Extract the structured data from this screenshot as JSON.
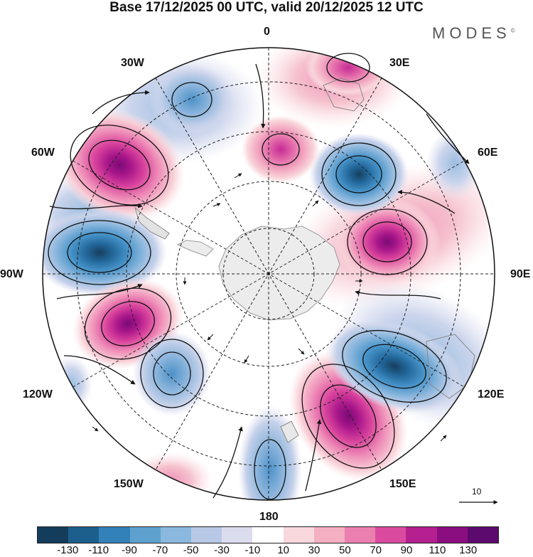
{
  "header": {
    "title": "Base 17/12/2025 00 UTC, valid 20/12/2025 12 UTC",
    "brand": "MODES"
  },
  "map": {
    "projection": "south polar stereographic",
    "longitude_labels": {
      "lon_0": "0",
      "lon_30e": "30E",
      "lon_60e": "60E",
      "lon_90e": "90E",
      "lon_120e": "120E",
      "lon_150e": "150E",
      "lon_180": "180",
      "lon_150w": "150W",
      "lon_120w": "120W",
      "lon_90w": "90W",
      "lon_60w": "60W",
      "lon_30w": "30W"
    },
    "anomaly_centers": [
      {
        "name": "60W high",
        "value": 110
      },
      {
        "name": "85W low",
        "value": -110
      },
      {
        "name": "115W high",
        "value": 110
      },
      {
        "name": "150W low",
        "value": -50
      },
      {
        "name": "150W weak high",
        "value": 50
      },
      {
        "name": "170E high",
        "value": 120
      },
      {
        "name": "175W low",
        "value": -50
      },
      {
        "name": "130E low",
        "value": -110
      },
      {
        "name": "75E high",
        "value": 100
      },
      {
        "name": "45E low",
        "value": -100
      },
      {
        "name": "10E high",
        "value": 60
      },
      {
        "name": "25W low",
        "value": -40
      },
      {
        "name": "25E high",
        "value": 50
      }
    ]
  },
  "vector_scale": {
    "label": "10"
  },
  "colorbar": {
    "colors": [
      "#143d5c",
      "#1d5f8c",
      "#3281b9",
      "#5ea1cf",
      "#8bb8de",
      "#b7c9e6",
      "#dcdcef",
      "#ffffff",
      "#f9d8dd",
      "#f4afc2",
      "#eb7fb0",
      "#da4b9f",
      "#b51f8f",
      "#8a0e80",
      "#5c0a6e"
    ],
    "ticks": [
      "-130",
      "-110",
      "-90",
      "-70",
      "-50",
      "-30",
      "-10",
      "10",
      "30",
      "50",
      "70",
      "90",
      "110",
      "130"
    ]
  }
}
